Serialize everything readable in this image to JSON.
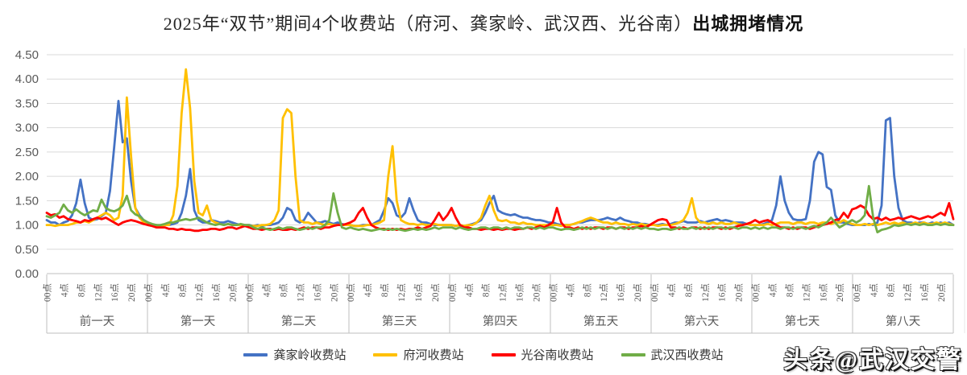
{
  "title": {
    "regular": "2025年“双节”期间4个收费站（府河、龚家岭、武汉西、光谷南）",
    "bold": "出城拥堵情况"
  },
  "watermark": "头条@武汉交警",
  "axis_text_color": "#595959",
  "gridline_color": "#D9D9D9",
  "axis_line_color": "#BFBFBF",
  "chart_data": {
    "type": "line",
    "title": "2025年“双节”期间4个收费站（府河、龚家岭、武汉西、光谷南）出城拥堵情况",
    "ylim": [
      0,
      4.5
    ],
    "y_tick_step": 0.5,
    "y_tick_labels": [
      "0.00",
      "0.50",
      "1.00",
      "1.50",
      "2.00",
      "2.50",
      "3.00",
      "3.50",
      "4.00",
      "4.50"
    ],
    "x_hour_ticks": [
      "00点",
      "4点",
      "8点",
      "12点",
      "16点",
      "20点"
    ],
    "day_groups": [
      "前一天",
      "第一天",
      "第二天",
      "第三天",
      "第四天",
      "第五天",
      "第六天",
      "第七天",
      "第八天"
    ],
    "points_per_day": 24,
    "grid": true,
    "legend_position": "bottom",
    "series": [
      {
        "name": "龚家岭收费站",
        "color": "#4472C4",
        "values": [
          1.1,
          1.05,
          1.05,
          1.0,
          1.05,
          1.08,
          1.2,
          1.45,
          1.93,
          1.45,
          1.15,
          1.1,
          1.12,
          1.18,
          1.25,
          1.7,
          2.6,
          3.55,
          2.7,
          2.78,
          1.9,
          1.35,
          1.2,
          1.1,
          1.05,
          1.0,
          1.0,
          0.98,
          1.0,
          1.0,
          1.02,
          1.05,
          1.25,
          1.6,
          2.15,
          1.3,
          1.1,
          1.05,
          1.05,
          1.1,
          1.08,
          1.05,
          1.05,
          1.08,
          1.05,
          1.02,
          1.0,
          1.0,
          1.0,
          0.98,
          1.0,
          0.98,
          1.0,
          1.0,
          1.02,
          1.05,
          1.15,
          1.35,
          1.3,
          1.1,
          1.05,
          1.1,
          1.25,
          1.15,
          1.05,
          1.05,
          1.08,
          1.05,
          1.02,
          1.05,
          1.02,
          1.0,
          1.0,
          0.98,
          0.98,
          1.0,
          1.0,
          1.0,
          1.05,
          1.1,
          1.3,
          1.55,
          1.45,
          1.2,
          1.15,
          1.25,
          1.55,
          1.3,
          1.1,
          1.05,
          1.05,
          1.02,
          1.0,
          1.0,
          1.0,
          1.0,
          1.0,
          0.98,
          1.0,
          0.98,
          1.0,
          1.02,
          1.05,
          1.1,
          1.25,
          1.45,
          1.6,
          1.3,
          1.25,
          1.22,
          1.2,
          1.22,
          1.18,
          1.15,
          1.15,
          1.12,
          1.1,
          1.1,
          1.08,
          1.05,
          1.05,
          1.02,
          1.0,
          1.0,
          1.0,
          1.02,
          1.05,
          1.05,
          1.08,
          1.1,
          1.1,
          1.1,
          1.12,
          1.15,
          1.12,
          1.1,
          1.15,
          1.1,
          1.08,
          1.05,
          1.05,
          1.02,
          1.02,
          1.0,
          1.0,
          1.0,
          1.02,
          1.0,
          1.02,
          1.05,
          1.05,
          1.08,
          1.05,
          1.05,
          1.05,
          1.08,
          1.05,
          1.08,
          1.1,
          1.12,
          1.08,
          1.1,
          1.08,
          1.05,
          1.05,
          1.05,
          1.02,
          1.0,
          1.0,
          1.0,
          1.02,
          1.05,
          1.1,
          1.4,
          2.0,
          1.5,
          1.25,
          1.12,
          1.1,
          1.1,
          1.12,
          1.5,
          2.3,
          2.5,
          2.45,
          1.78,
          1.72,
          1.2,
          1.05,
          1.05,
          1.02,
          1.0,
          1.0,
          1.0,
          1.0,
          1.02,
          1.0,
          1.05,
          1.4,
          3.15,
          3.2,
          2.0,
          1.35,
          1.1,
          1.05,
          1.05,
          1.02,
          1.05,
          1.05,
          1.02,
          1.05,
          1.02,
          1.05,
          1.02,
          1.05,
          1.0
        ]
      },
      {
        "name": "府河收费站",
        "color": "#FFC000",
        "values": [
          1.0,
          1.0,
          0.98,
          1.0,
          1.0,
          1.0,
          1.02,
          1.05,
          1.05,
          1.08,
          1.05,
          1.1,
          1.15,
          1.2,
          1.25,
          1.2,
          1.1,
          1.15,
          1.6,
          3.62,
          2.4,
          1.35,
          1.15,
          1.05,
          1.0,
          0.98,
          0.98,
          0.98,
          1.0,
          1.0,
          1.2,
          1.8,
          3.3,
          4.2,
          3.4,
          1.9,
          1.25,
          1.2,
          1.4,
          1.1,
          1.05,
          1.02,
          1.0,
          1.02,
          1.0,
          1.0,
          1.0,
          1.0,
          0.98,
          0.98,
          0.98,
          1.0,
          1.0,
          1.02,
          1.1,
          1.3,
          3.2,
          3.38,
          3.3,
          2.0,
          1.1,
          1.05,
          1.05,
          1.02,
          1.05,
          1.02,
          1.0,
          1.02,
          1.0,
          1.0,
          1.0,
          1.0,
          1.0,
          0.98,
          0.98,
          0.98,
          1.0,
          1.0,
          1.02,
          1.05,
          1.1,
          2.0,
          2.62,
          1.5,
          1.1,
          1.05,
          1.02,
          1.02,
          1.0,
          1.02,
          1.0,
          1.0,
          1.02,
          1.0,
          1.0,
          1.0,
          1.0,
          0.98,
          1.0,
          0.98,
          1.0,
          1.0,
          1.05,
          1.15,
          1.4,
          1.6,
          1.3,
          1.1,
          1.08,
          1.1,
          1.05,
          1.05,
          1.02,
          1.05,
          1.02,
          1.02,
          1.0,
          1.0,
          1.0,
          1.0,
          1.0,
          1.0,
          0.98,
          1.0,
          1.0,
          1.02,
          1.05,
          1.08,
          1.12,
          1.15,
          1.12,
          1.08,
          1.05,
          1.05,
          1.02,
          1.05,
          1.02,
          1.02,
          1.0,
          1.02,
          1.0,
          1.02,
          1.0,
          1.0,
          1.0,
          0.98,
          1.0,
          1.0,
          1.0,
          1.02,
          1.05,
          1.1,
          1.25,
          1.55,
          1.15,
          1.05,
          1.05,
          1.02,
          1.05,
          1.02,
          1.05,
          1.02,
          1.02,
          1.05,
          1.02,
          1.0,
          1.02,
          1.0,
          1.0,
          1.0,
          1.0,
          1.02,
          1.0,
          1.02,
          1.05,
          1.05,
          1.05,
          1.02,
          1.05,
          1.05,
          1.02,
          1.05,
          1.05,
          1.02,
          1.05,
          1.05,
          1.02,
          1.05,
          1.05,
          1.1,
          1.05,
          1.02,
          1.0,
          1.0,
          1.02,
          1.0,
          1.02,
          1.0,
          1.02,
          1.05,
          1.02,
          1.05,
          1.02,
          1.05,
          1.02,
          1.02,
          1.05,
          1.02,
          1.05,
          1.02,
          1.02,
          1.05,
          1.02,
          1.05,
          1.02,
          1.0
        ]
      },
      {
        "name": "光谷南收费站",
        "color": "#FF0000",
        "values": [
          1.25,
          1.2,
          1.22,
          1.15,
          1.18,
          1.12,
          1.1,
          1.08,
          1.05,
          1.1,
          1.08,
          1.12,
          1.15,
          1.12,
          1.15,
          1.1,
          1.05,
          1.0,
          1.05,
          1.08,
          1.1,
          1.08,
          1.05,
          1.02,
          1.0,
          0.98,
          0.95,
          0.95,
          0.95,
          0.92,
          0.92,
          0.9,
          0.92,
          0.9,
          0.9,
          0.88,
          0.88,
          0.9,
          0.9,
          0.92,
          0.92,
          0.9,
          0.92,
          0.95,
          0.95,
          0.92,
          0.95,
          0.98,
          0.95,
          0.92,
          0.92,
          0.9,
          0.92,
          0.92,
          0.9,
          0.92,
          0.9,
          0.9,
          0.92,
          0.9,
          0.92,
          0.95,
          0.92,
          0.95,
          0.95,
          0.92,
          0.95,
          0.95,
          0.98,
          1.0,
          1.0,
          1.02,
          1.05,
          1.1,
          1.25,
          1.35,
          1.15,
          1.0,
          0.95,
          0.92,
          0.92,
          0.9,
          0.92,
          0.9,
          0.92,
          0.9,
          0.92,
          0.92,
          0.95,
          0.92,
          0.95,
          0.98,
          1.1,
          1.25,
          1.1,
          1.2,
          1.35,
          1.15,
          1.0,
          0.95,
          0.95,
          0.92,
          0.92,
          0.9,
          0.92,
          0.92,
          0.9,
          0.92,
          0.9,
          0.92,
          0.92,
          0.9,
          0.92,
          0.92,
          0.95,
          0.92,
          0.95,
          0.98,
          0.95,
          1.0,
          1.05,
          1.35,
          1.05,
          0.95,
          0.95,
          0.92,
          0.95,
          0.92,
          0.95,
          0.92,
          0.95,
          0.95,
          0.92,
          0.95,
          0.95,
          0.92,
          0.95,
          0.95,
          0.92,
          0.95,
          0.95,
          0.98,
          0.95,
          1.0,
          1.05,
          1.1,
          1.12,
          1.1,
          0.95,
          0.95,
          0.92,
          0.95,
          0.92,
          0.95,
          0.95,
          0.92,
          0.95,
          0.92,
          0.95,
          0.95,
          0.92,
          0.95,
          0.92,
          0.95,
          0.98,
          1.0,
          1.02,
          1.05,
          1.1,
          1.05,
          1.08,
          1.1,
          1.05,
          1.0,
          0.95,
          0.95,
          0.92,
          0.95,
          0.92,
          0.95,
          0.95,
          0.92,
          0.95,
          0.98,
          1.0,
          1.02,
          1.05,
          1.1,
          1.12,
          1.25,
          1.15,
          1.32,
          1.35,
          1.4,
          1.35,
          1.2,
          1.12,
          1.15,
          1.1,
          1.15,
          1.1,
          1.12,
          1.15,
          1.12,
          1.15,
          1.18,
          1.15,
          1.12,
          1.15,
          1.18,
          1.15,
          1.2,
          1.25,
          1.2,
          1.45,
          1.12
        ]
      },
      {
        "name": "武汉西收费站",
        "color": "#70AD47",
        "values": [
          1.18,
          1.15,
          1.2,
          1.25,
          1.42,
          1.3,
          1.25,
          1.32,
          1.25,
          1.2,
          1.25,
          1.3,
          1.28,
          1.52,
          1.35,
          1.3,
          1.28,
          1.32,
          1.4,
          1.6,
          1.3,
          1.22,
          1.18,
          1.1,
          1.05,
          1.02,
          1.0,
          1.0,
          1.02,
          1.05,
          1.05,
          1.08,
          1.1,
          1.12,
          1.1,
          1.12,
          1.15,
          1.1,
          1.05,
          1.02,
          1.0,
          1.02,
          1.0,
          1.02,
          1.0,
          1.0,
          1.02,
          1.0,
          1.0,
          0.95,
          0.92,
          0.95,
          0.92,
          0.9,
          0.92,
          0.95,
          0.92,
          0.95,
          0.95,
          0.92,
          0.9,
          0.92,
          0.95,
          0.92,
          0.95,
          0.95,
          1.0,
          1.1,
          1.65,
          1.25,
          0.95,
          0.92,
          0.95,
          0.92,
          0.9,
          0.92,
          0.9,
          0.88,
          0.9,
          0.92,
          0.9,
          0.92,
          0.9,
          0.92,
          0.9,
          0.88,
          0.9,
          0.92,
          0.9,
          0.92,
          0.9,
          0.92,
          0.95,
          0.92,
          0.95,
          0.95,
          0.95,
          0.92,
          0.95,
          0.92,
          0.9,
          0.92,
          0.92,
          0.95,
          0.95,
          0.92,
          0.95,
          0.95,
          0.92,
          0.95,
          0.92,
          0.95,
          0.95,
          0.92,
          0.95,
          0.95,
          0.92,
          0.95,
          0.92,
          0.95,
          0.95,
          0.92,
          0.9,
          0.92,
          0.92,
          0.9,
          0.92,
          0.95,
          0.92,
          0.95,
          0.92,
          0.95,
          0.95,
          0.92,
          0.95,
          0.92,
          0.95,
          0.92,
          0.95,
          0.92,
          0.95,
          0.92,
          0.95,
          0.92,
          0.92,
          0.9,
          0.92,
          0.92,
          0.9,
          0.92,
          0.95,
          0.92,
          0.92,
          0.95,
          0.92,
          0.95,
          0.92,
          0.95,
          0.92,
          0.95,
          0.95,
          0.92,
          0.95,
          0.95,
          0.92,
          0.95,
          0.95,
          0.92,
          0.95,
          0.92,
          0.95,
          0.92,
          0.95,
          0.95,
          0.92,
          0.95,
          0.95,
          0.92,
          0.95,
          0.95,
          0.92,
          0.95,
          0.98,
          0.95,
          1.0,
          1.05,
          1.15,
          1.05,
          0.95,
          1.0,
          1.05,
          1.1,
          1.05,
          1.1,
          1.2,
          1.8,
          1.15,
          0.85,
          0.9,
          0.92,
          0.95,
          1.0,
          0.98,
          1.0,
          1.02,
          1.0,
          1.02,
          1.0,
          1.02,
          1.0,
          1.0,
          1.02,
          1.0,
          1.02,
          1.0,
          1.0
        ]
      }
    ]
  }
}
